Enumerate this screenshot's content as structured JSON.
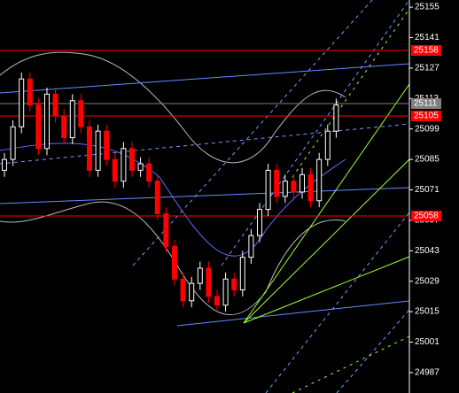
{
  "chart_data": {
    "type": "candlestick",
    "open": [
      25080,
      25085,
      25100,
      25122,
      25110,
      25090,
      25115,
      25105,
      25095,
      25112,
      25100,
      25080,
      25098,
      25085,
      25075,
      25090,
      25080,
      25083,
      25075,
      25060,
      25045,
      25030,
      25020,
      25028,
      25035,
      25022,
      25018,
      25030,
      25025,
      25040,
      25050,
      25062,
      25080,
      25068,
      25075,
      25070,
      25078,
      25066,
      25085,
      25098
    ],
    "high": [
      25088,
      25103,
      25125,
      25125,
      25113,
      25118,
      25118,
      25108,
      25115,
      25115,
      25103,
      25101,
      25101,
      25088,
      25093,
      25093,
      25086,
      25086,
      25078,
      25063,
      25048,
      25033,
      25031,
      25038,
      25038,
      25025,
      25033,
      25033,
      25043,
      25053,
      25065,
      25083,
      25083,
      25078,
      25078,
      25081,
      25081,
      25088,
      25101,
      25113
    ],
    "low": [
      25077,
      25082,
      25097,
      25107,
      25087,
      25087,
      25102,
      25092,
      25092,
      25097,
      25077,
      25077,
      25082,
      25072,
      25072,
      25077,
      25077,
      25072,
      25057,
      25042,
      25027,
      25017,
      25017,
      25025,
      25019,
      25015,
      25015,
      25022,
      25022,
      25037,
      25047,
      25059,
      25065,
      25065,
      25067,
      25067,
      25063,
      25063,
      25082,
      25095
    ],
    "close": [
      25085,
      25100,
      25122,
      25110,
      25090,
      25115,
      25105,
      25095,
      25112,
      25100,
      25080,
      25098,
      25085,
      25075,
      25090,
      25080,
      25083,
      25075,
      25060,
      25045,
      25030,
      25020,
      25028,
      25035,
      25022,
      25018,
      25030,
      25025,
      25040,
      25050,
      25062,
      25080,
      25068,
      25075,
      25070,
      25078,
      25066,
      25085,
      25098,
      25110
    ],
    "up_color": "#ffffff",
    "down_color": "#ff0000",
    "ylim": [
      24977.6,
      25158.3
    ],
    "yticks": [
      25155,
      25141,
      25127,
      25113,
      25099,
      25085,
      25071,
      25057,
      25043,
      25029,
      25015,
      25001,
      24987
    ],
    "levels": [
      {
        "label": "25158",
        "color": "#ff0000"
      },
      {
        "label": "25111",
        "color": "#808080"
      },
      {
        "label": "25105",
        "color": "#ff0000"
      },
      {
        "label": "25058",
        "color": "#ff0000"
      }
    ]
  }
}
